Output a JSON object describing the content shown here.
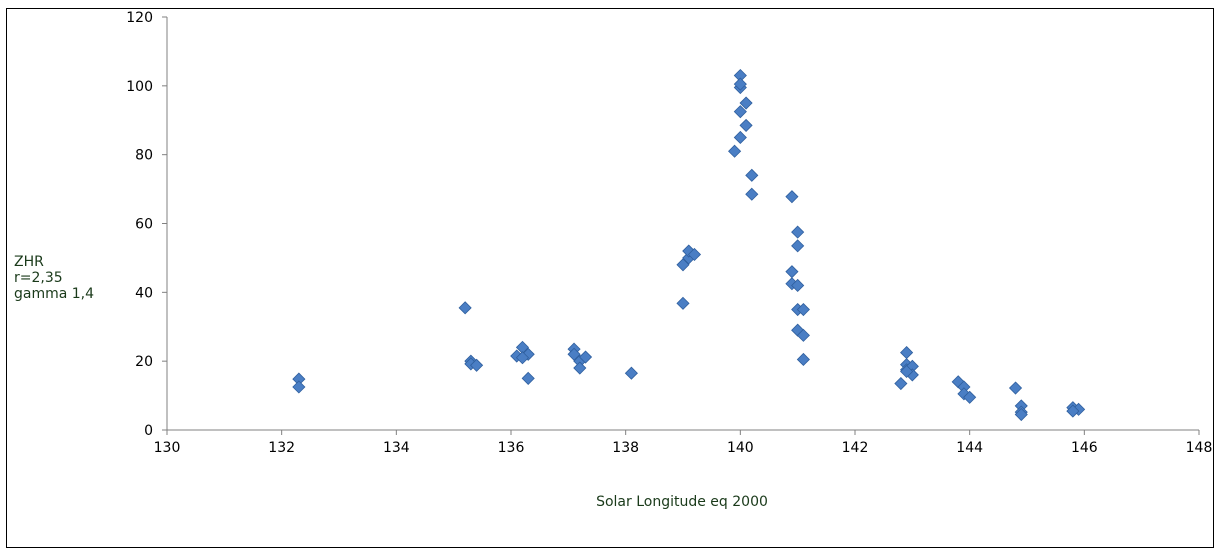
{
  "chart_data": {
    "type": "scatter",
    "xlabel": "Solar Longitude eq 2000",
    "ylabel_lines": [
      "ZHR",
      "r=2,35",
      "gamma 1,4"
    ],
    "xlim": [
      130,
      148
    ],
    "ylim": [
      0,
      120
    ],
    "x_ticks": [
      "130",
      "132",
      "134",
      "136",
      "138",
      "140",
      "142",
      "144",
      "146",
      "148"
    ],
    "y_ticks": [
      "0",
      "20",
      "40",
      "60",
      "80",
      "100",
      "120"
    ],
    "grid": false,
    "marker_color": "#4a7ec4",
    "marker_edge_color": "#2f5f9e",
    "points": [
      [
        132.3,
        14.8
      ],
      [
        132.3,
        12.5
      ],
      [
        135.2,
        35.5
      ],
      [
        135.3,
        20.0
      ],
      [
        135.3,
        19.2
      ],
      [
        135.4,
        18.8
      ],
      [
        136.2,
        24.0
      ],
      [
        136.1,
        21.5
      ],
      [
        136.3,
        22.0
      ],
      [
        136.2,
        21.0
      ],
      [
        136.3,
        15.0
      ],
      [
        137.1,
        23.5
      ],
      [
        137.1,
        22.0
      ],
      [
        137.2,
        20.0
      ],
      [
        137.3,
        21.2
      ],
      [
        137.2,
        18.0
      ],
      [
        138.1,
        16.5
      ],
      [
        139.0,
        36.8
      ],
      [
        139.0,
        48.0
      ],
      [
        139.1,
        50.0
      ],
      [
        139.1,
        52.0
      ],
      [
        139.2,
        51.0
      ],
      [
        140.0,
        103.0
      ],
      [
        140.0,
        99.5
      ],
      [
        140.0,
        100.5
      ],
      [
        140.1,
        95.0
      ],
      [
        140.0,
        92.5
      ],
      [
        140.1,
        88.5
      ],
      [
        140.0,
        85.0
      ],
      [
        139.9,
        81.0
      ],
      [
        140.2,
        74.0
      ],
      [
        140.2,
        68.5
      ],
      [
        140.9,
        67.8
      ],
      [
        141.0,
        57.5
      ],
      [
        141.0,
        53.5
      ],
      [
        140.9,
        46.0
      ],
      [
        140.9,
        42.5
      ],
      [
        141.0,
        42.0
      ],
      [
        141.0,
        35.0
      ],
      [
        141.1,
        35.0
      ],
      [
        141.0,
        29.0
      ],
      [
        141.1,
        27.5
      ],
      [
        141.1,
        20.5
      ],
      [
        142.8,
        13.5
      ],
      [
        142.9,
        22.5
      ],
      [
        142.9,
        19.0
      ],
      [
        142.9,
        17.5
      ],
      [
        143.0,
        18.5
      ],
      [
        143.0,
        16.0
      ],
      [
        142.9,
        17.0
      ],
      [
        143.8,
        14.0
      ],
      [
        143.9,
        12.5
      ],
      [
        143.9,
        10.5
      ],
      [
        144.0,
        9.5
      ],
      [
        144.8,
        12.2
      ],
      [
        144.9,
        7.0
      ],
      [
        144.9,
        5.2
      ],
      [
        144.9,
        4.5
      ],
      [
        145.8,
        6.5
      ],
      [
        145.9,
        6.0
      ],
      [
        145.8,
        5.5
      ]
    ]
  }
}
